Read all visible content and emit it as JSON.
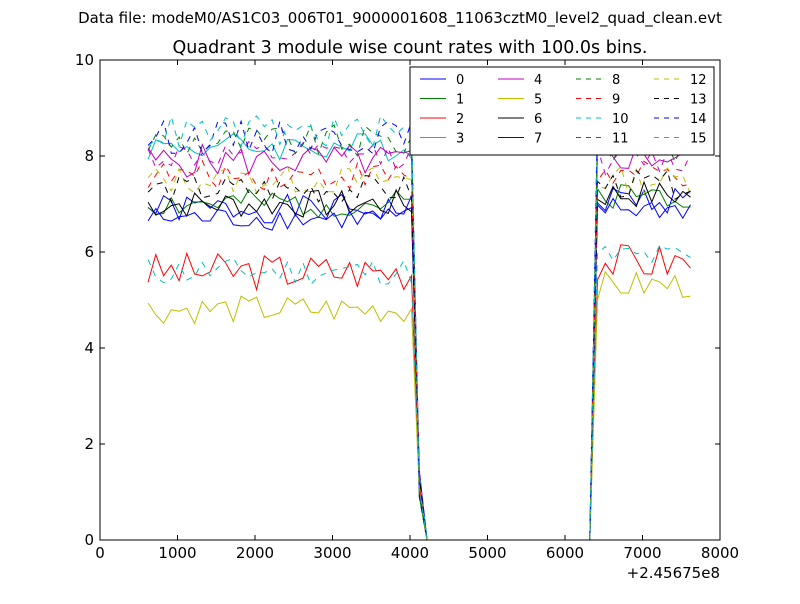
{
  "figure": {
    "suptitle": "Data file: modeM0/AS1C03_006T01_9000001608_11063cztM0_level2_quad_clean.evt"
  },
  "chart_data": {
    "type": "line",
    "title": "Quadrant 3 module wise count rates with 100.0s bins.",
    "xlabel": "",
    "ylabel": "",
    "x_offset_label": "+2.45675e8",
    "xlim": [
      0,
      8000
    ],
    "ylim": [
      0,
      10
    ],
    "xticks": [
      "0",
      "1000",
      "2000",
      "3000",
      "4000",
      "5000",
      "6000",
      "7000",
      "8000"
    ],
    "yticks": [
      "0",
      "2",
      "4",
      "6",
      "8",
      "10"
    ],
    "grid": false,
    "legend_placement": "top-right",
    "legend_columns": 4,
    "segments": [
      {
        "x_start": 620,
        "x_end": 4020,
        "x_step": 100
      },
      {
        "x_start": 4120,
        "x_end": 6320,
        "x_step": 100
      },
      {
        "x_start": 6420,
        "x_end": 7620,
        "x_step": 100
      }
    ],
    "series": [
      {
        "name": "0",
        "color": "#0000ff",
        "dash": "solid",
        "level_early": 6.9,
        "level_late": 7.1,
        "amp": 0.3,
        "seed": 1
      },
      {
        "name": "1",
        "color": "#008000",
        "dash": "solid",
        "level_early": 7.0,
        "level_late": 7.2,
        "amp": 0.3,
        "seed": 2
      },
      {
        "name": "2",
        "color": "#ff0000",
        "dash": "solid",
        "level_early": 5.6,
        "level_late": 5.8,
        "amp": 0.4,
        "seed": 3
      },
      {
        "name": "3",
        "color": "#00bfbf",
        "dash": "solid",
        "level_early": 8.2,
        "level_late": 8.5,
        "amp": 0.3,
        "seed": 4
      },
      {
        "name": "4",
        "color": "#bf00bf",
        "dash": "solid",
        "level_early": 7.9,
        "level_late": 8.0,
        "amp": 0.35,
        "seed": 5
      },
      {
        "name": "5",
        "color": "#bfbf00",
        "dash": "solid",
        "level_early": 4.8,
        "level_late": 5.3,
        "amp": 0.3,
        "seed": 6
      },
      {
        "name": "6",
        "color": "#000000",
        "dash": "solid",
        "level_early": 7.0,
        "level_late": 7.2,
        "amp": 0.3,
        "seed": 7
      },
      {
        "name": "7",
        "color": "#0000ff",
        "dash": "solid",
        "level_early": 6.7,
        "level_late": 6.9,
        "amp": 0.25,
        "seed": 8
      },
      {
        "name": "8",
        "color": "#008000",
        "dash": "dashed",
        "level_early": 8.3,
        "level_late": 8.2,
        "amp": 0.35,
        "seed": 9
      },
      {
        "name": "9",
        "color": "#ff0000",
        "dash": "dashed",
        "level_early": 7.6,
        "level_late": 7.6,
        "amp": 0.3,
        "seed": 10
      },
      {
        "name": "10",
        "color": "#00bfbf",
        "dash": "dashed",
        "level_early": 5.6,
        "level_late": 5.9,
        "amp": 0.3,
        "seed": 11
      },
      {
        "name": "11",
        "color": "#bf00bf",
        "dash": "dashed",
        "level_early": 8.0,
        "level_late": 7.9,
        "amp": 0.3,
        "seed": 12
      },
      {
        "name": "12",
        "color": "#bfbf00",
        "dash": "dashed",
        "level_early": 7.5,
        "level_late": 7.5,
        "amp": 0.3,
        "seed": 13
      },
      {
        "name": "13",
        "color": "#000000",
        "dash": "dashed",
        "level_early": 7.3,
        "level_late": 7.4,
        "amp": 0.3,
        "seed": 14
      },
      {
        "name": "14",
        "color": "#0000ff",
        "dash": "dashed",
        "level_early": 8.4,
        "level_late": 8.6,
        "amp": 0.35,
        "seed": 15
      },
      {
        "name": "15",
        "color": "#00bfbf",
        "dash": "dashed",
        "level_early": 8.5,
        "level_late": 8.4,
        "amp": 0.35,
        "seed": 16
      }
    ]
  }
}
